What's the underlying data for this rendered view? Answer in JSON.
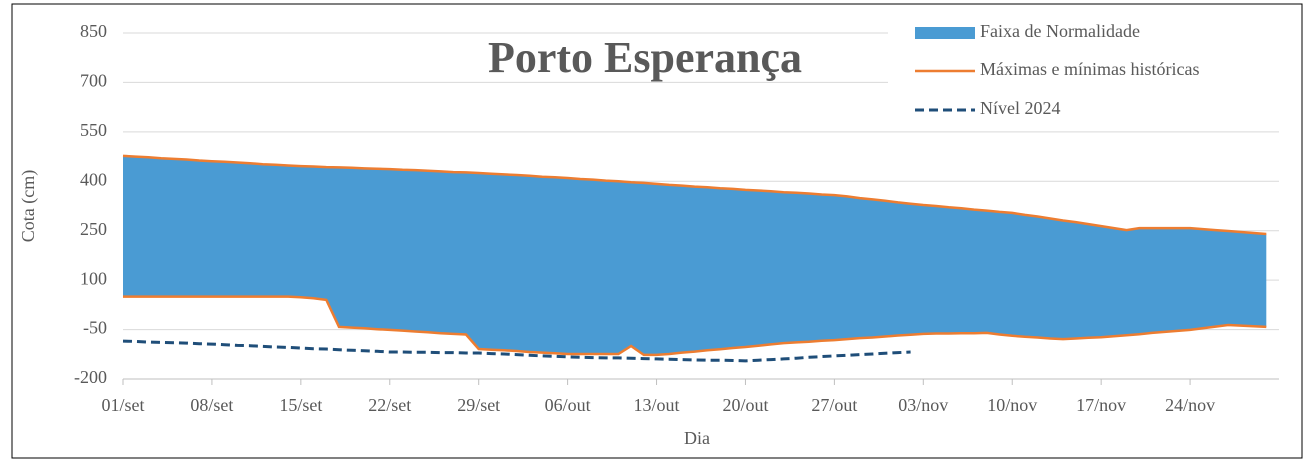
{
  "chart_data": {
    "type": "band",
    "title": "Porto Esperança",
    "x_label": "Dia",
    "y_label": "Cota (cm)",
    "categories": [
      "01/set",
      null,
      null,
      null,
      null,
      null,
      null,
      "08/set",
      null,
      null,
      null,
      null,
      null,
      null,
      "15/set",
      null,
      null,
      null,
      null,
      null,
      null,
      "22/set",
      null,
      null,
      null,
      null,
      null,
      null,
      "29/set",
      null,
      null,
      null,
      null,
      null,
      null,
      "06/out",
      null,
      null,
      null,
      null,
      null,
      null,
      "13/out",
      null,
      null,
      null,
      null,
      null,
      null,
      "20/out",
      null,
      null,
      null,
      null,
      null,
      null,
      "27/out",
      null,
      null,
      null,
      null,
      null,
      null,
      "03/nov",
      null,
      null,
      null,
      null,
      null,
      null,
      "10/nov",
      null,
      null,
      null,
      null,
      null,
      null,
      "17/nov",
      null,
      null,
      null,
      null,
      null,
      null,
      "24/nov",
      null,
      null,
      null,
      null,
      null,
      null
    ],
    "series": [
      {
        "name": "Faixa de Normalidade",
        "color": "#4a9bd3"
      },
      {
        "name": "Máximas e mínimas históricas",
        "color": "#ed7d31",
        "max": [
          477,
          475,
          473,
          470,
          468,
          466,
          463,
          461,
          459,
          457,
          455,
          452,
          450,
          448,
          446,
          445,
          443,
          442,
          441,
          439,
          438,
          437,
          435,
          434,
          432,
          430,
          428,
          427,
          425,
          423,
          421,
          419,
          417,
          414,
          412,
          410,
          407,
          405,
          402,
          400,
          397,
          395,
          392,
          389,
          387,
          384,
          382,
          379,
          377,
          374,
          372,
          370,
          367,
          365,
          363,
          360,
          358,
          354,
          349,
          345,
          341,
          336,
          332,
          328,
          325,
          321,
          318,
          314,
          311,
          307,
          304,
          298,
          293,
          287,
          281,
          276,
          270,
          264,
          258,
          252,
          258,
          258,
          258,
          258,
          258,
          255,
          252,
          249,
          246,
          243,
          240
        ],
        "min": [
          50,
          50,
          50,
          50,
          50,
          50,
          50,
          50,
          50,
          50,
          50,
          50,
          50,
          50,
          48,
          45,
          40,
          -42,
          -44,
          -46,
          -49,
          -51,
          -53,
          -56,
          -58,
          -61,
          -63,
          -65,
          -109,
          -111,
          -113,
          -115,
          -118,
          -120,
          -122,
          -124,
          -124,
          -124,
          -124,
          -124,
          -100,
          -127,
          -127,
          -124,
          -120,
          -117,
          -113,
          -110,
          -106,
          -103,
          -99,
          -95,
          -91,
          -89,
          -87,
          -84,
          -82,
          -79,
          -76,
          -74,
          -71,
          -68,
          -66,
          -63,
          -62,
          -62,
          -61,
          -61,
          -60,
          -65,
          -69,
          -72,
          -74,
          -77,
          -79,
          -77,
          -75,
          -73,
          -70,
          -67,
          -64,
          -60,
          -57,
          -54,
          -51,
          -46,
          -41,
          -36,
          -38,
          -40,
          -42
        ]
      },
      {
        "name": "Nível 2024",
        "color": "#1f4e79",
        "dashed": true,
        "values": [
          -85,
          -86,
          -88,
          -89,
          -90,
          -91,
          -93,
          -94,
          -96,
          -98,
          -99,
          -101,
          -103,
          -104,
          -106,
          -108,
          -109,
          -111,
          -113,
          -114,
          -116,
          -118,
          -118,
          -119,
          -119,
          -120,
          -120,
          -121,
          -121,
          -123,
          -124,
          -126,
          -128,
          -130,
          -131,
          -133,
          -134,
          -135,
          -136,
          -136,
          -137,
          -138,
          -139,
          -140,
          -141,
          -142,
          -143,
          -143,
          -144,
          -145,
          -143,
          -141,
          -139,
          -137,
          -134,
          -132,
          -130,
          -128,
          -126,
          -124,
          -122,
          -120,
          -118,
          null,
          null,
          null,
          null,
          null,
          null,
          null,
          null,
          null,
          null,
          null,
          null,
          null,
          null,
          null,
          null,
          null,
          null,
          null,
          null,
          null,
          null,
          null,
          null,
          null,
          null,
          null,
          null
        ]
      }
    ],
    "ylim": [
      -200,
      850
    ],
    "yticks": [
      -200,
      -50,
      100,
      250,
      400,
      550,
      700,
      850
    ],
    "grid": true,
    "legend": "top-right"
  }
}
